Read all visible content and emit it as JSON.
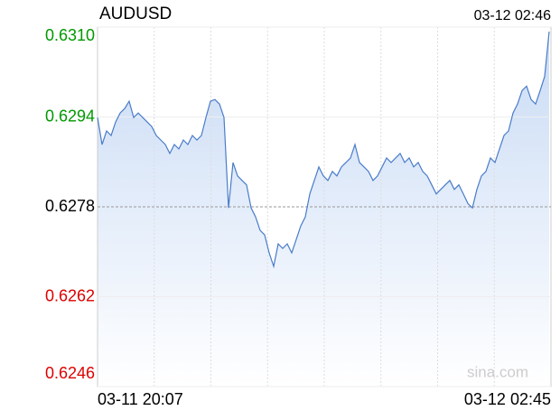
{
  "chart_data": {
    "type": "line",
    "title": "AUDUSD",
    "timestamp": "03-12 02:46",
    "watermark": "sina.com",
    "x_labels": [
      "03-11 20:07",
      "03-12 02:45"
    ],
    "ylim": [
      0.6246,
      0.631
    ],
    "yticks": [
      {
        "value": 0.631,
        "label": "0.6310"
      },
      0.6294,
      0.6278,
      0.6262,
      0.6246
    ],
    "baseline": 0.6278,
    "up_color": "#009900",
    "down_color": "#dd0000",
    "flat_color": "#000000",
    "grid": true,
    "series": [
      {
        "name": "AUDUSD",
        "color": "#4a7cc9",
        "values": [
          0.62939,
          0.62891,
          0.62915,
          0.62907,
          0.62931,
          0.62947,
          0.62955,
          0.62968,
          0.62939,
          0.62947,
          0.62939,
          0.62931,
          0.62923,
          0.62907,
          0.62899,
          0.62891,
          0.62875,
          0.62891,
          0.62883,
          0.62899,
          0.62891,
          0.62907,
          0.62899,
          0.62907,
          0.62939,
          0.62968,
          0.62971,
          0.62963,
          0.62939,
          0.62778,
          0.62859,
          0.62835,
          0.62827,
          0.62819,
          0.62778,
          0.62762,
          0.62738,
          0.6273,
          0.62698,
          0.62674,
          0.62714,
          0.62706,
          0.62714,
          0.62698,
          0.62722,
          0.62746,
          0.62762,
          0.62803,
          0.62827,
          0.62851,
          0.62835,
          0.62827,
          0.62843,
          0.62835,
          0.62851,
          0.62859,
          0.62867,
          0.62891,
          0.62859,
          0.62851,
          0.62843,
          0.62827,
          0.62835,
          0.62851,
          0.62867,
          0.62859,
          0.62867,
          0.62875,
          0.62859,
          0.62867,
          0.62851,
          0.62859,
          0.62843,
          0.62835,
          0.62819,
          0.62803,
          0.62811,
          0.62819,
          0.62827,
          0.62811,
          0.62819,
          0.62803,
          0.62786,
          0.62778,
          0.62811,
          0.62835,
          0.62843,
          0.62867,
          0.62859,
          0.62883,
          0.62907,
          0.62915,
          0.62947,
          0.62963,
          0.62987,
          0.62995,
          0.62971,
          0.62963,
          0.62987,
          0.63012,
          0.63092
        ]
      }
    ]
  }
}
